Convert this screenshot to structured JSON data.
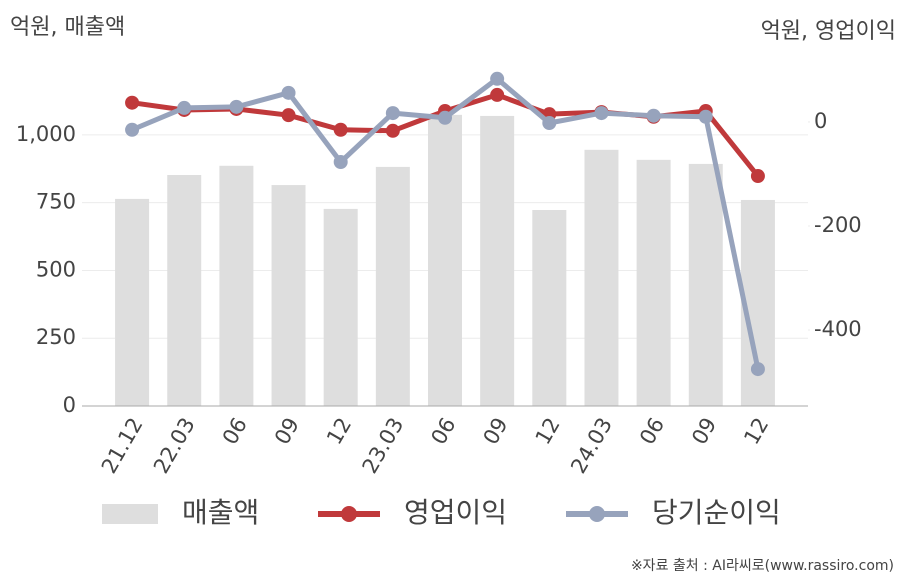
{
  "chart_data": {
    "type": "combo",
    "y_title": "억원, 매출액",
    "y2_title": "억원, 영업이익",
    "source": "※자료 출처 : AI라씨로(www.rassiro.com)",
    "categories": [
      "21.12",
      "22.03",
      "06",
      "09",
      "12",
      "23.03",
      "06",
      "09",
      "12",
      "24.03",
      "06",
      "09",
      "12"
    ],
    "series": [
      {
        "name": "매출액",
        "type": "bar",
        "color": "#dedede",
        "values": [
          764,
          852,
          886,
          815,
          727,
          882,
          1074,
          1070,
          723,
          945,
          908,
          893,
          760
        ]
      },
      {
        "name": "영업이익",
        "type": "line",
        "axis": "y2",
        "color": "#c0393b",
        "values": [
          37,
          23,
          25,
          13,
          -15,
          -17,
          21,
          52,
          15,
          19,
          10,
          21,
          -104
        ]
      },
      {
        "name": "당기순이익",
        "type": "line",
        "axis": "y2",
        "color": "#97a3bc",
        "values": [
          -15,
          27,
          29,
          56,
          -77,
          17,
          8,
          83,
          -2,
          17,
          12,
          10,
          -475
        ]
      }
    ],
    "ylim": [
      0,
      1280
    ],
    "yticks": [
      0,
      250,
      500,
      750,
      {
        "value": 1000,
        "label": "1,000"
      }
    ],
    "y2lim": [
      -546,
      121
    ],
    "y2ticks": [
      -400,
      -200,
      0
    ],
    "grid": true
  }
}
